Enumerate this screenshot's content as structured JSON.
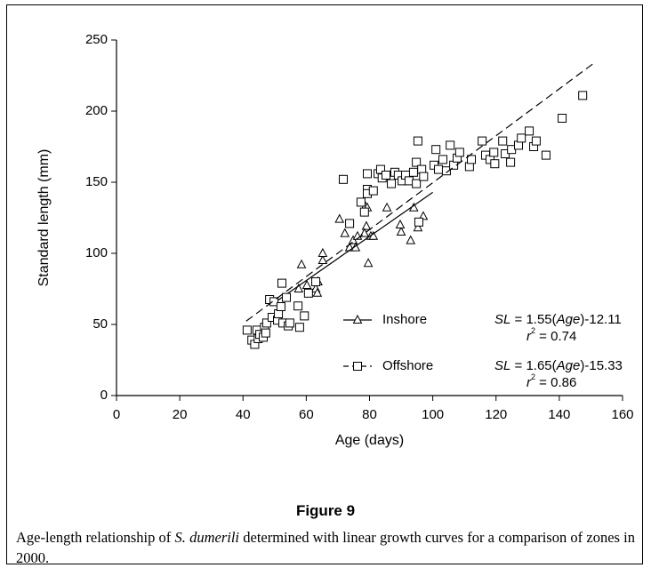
{
  "chart_data": {
    "type": "scatter",
    "xlabel": "Age (days)",
    "ylabel": "Standard length (mm)",
    "xlim": [
      0,
      160
    ],
    "ylim": [
      0,
      250
    ],
    "xticks": [
      0,
      20,
      40,
      60,
      80,
      100,
      120,
      140,
      160
    ],
    "yticks": [
      0,
      50,
      100,
      150,
      200,
      250
    ],
    "series": [
      {
        "name": "Inshore",
        "marker": "triangle",
        "line_style": "solid",
        "color": "#000000",
        "x": [
          58.5,
          60.2,
          57.6,
          63.7,
          65.2,
          65.2,
          63,
          63.5,
          70.5,
          72.2,
          73.7,
          74.8,
          76.2,
          75.6,
          79,
          78.4,
          79.6,
          80.4,
          81.2,
          85.5,
          90,
          89.7,
          93,
          94,
          95.3,
          97,
          78.7,
          79.3
        ],
        "values": [
          92,
          77.5,
          75,
          80,
          95,
          100,
          75,
          72,
          124,
          114,
          104,
          109,
          112,
          104,
          119,
          114,
          93,
          112,
          112,
          132,
          115,
          120,
          109,
          132,
          118,
          126,
          133,
          132
        ],
        "fit_x": [
          50,
          100
        ],
        "fit_values": [
          65.39,
          142.89
        ],
        "equation": [
          "SL",
          " = 1.55(",
          "Age",
          ")-12.11"
        ],
        "r2": [
          "r",
          "2",
          " = 0.74"
        ]
      },
      {
        "name": "Offshore",
        "marker": "square",
        "line_style": "dashed",
        "color": "#000000",
        "x": [
          41.3,
          42.8,
          43.7,
          44.8,
          44.4,
          45.3,
          46.4,
          46.8,
          47.2,
          47.5,
          48.4,
          49.2,
          49.8,
          50.9,
          51.2,
          52,
          52.3,
          52.6,
          53.7,
          54.3,
          54.8,
          57.4,
          57.9,
          59.4,
          60.7,
          63,
          71.7,
          73.7,
          77.3,
          78.4,
          79.3,
          79.3,
          79.3,
          81.2,
          82.7,
          83.5,
          84,
          85.2,
          86.9,
          88,
          89.1,
          90.3,
          91.4,
          92.5,
          93.9,
          94.8,
          94.8,
          95.3,
          95.6,
          96.5,
          97.1,
          100.4,
          101,
          101.8,
          103.2,
          104.3,
          105.5,
          106.6,
          107.7,
          108.5,
          111.6,
          112.2,
          115.6,
          116.7,
          118.1,
          119.3,
          119.6,
          122.1,
          122.9,
          124.6,
          124.9,
          127.1,
          128,
          130.5,
          131.9,
          132.7,
          135.8,
          140.9,
          147.4
        ],
        "values": [
          46,
          39,
          36,
          40,
          46,
          43,
          41,
          48,
          44,
          51,
          67.5,
          55,
          66,
          53,
          57.5,
          62.5,
          79,
          51,
          69,
          49,
          51,
          63,
          48,
          56,
          72,
          80,
          152,
          121,
          136,
          129,
          145,
          142,
          156,
          144,
          156,
          159,
          153,
          155,
          149,
          157,
          155,
          151,
          155,
          151,
          157,
          164,
          149,
          179,
          122,
          159,
          154,
          162,
          173,
          159,
          166,
          158,
          176,
          162,
          167,
          171,
          161,
          166,
          179,
          169,
          166,
          171,
          163,
          179,
          170,
          164,
          173,
          176,
          181,
          186,
          175,
          179,
          169,
          195,
          211
        ],
        "fit_x": [
          41,
          151
        ],
        "fit_values": [
          52.32,
          233.82
        ],
        "equation": [
          "SL",
          " = 1.65(",
          "Age",
          ")-15.33"
        ],
        "r2": [
          "r",
          "2",
          " = 0.86"
        ]
      }
    ]
  },
  "figure_label": "Figure 9",
  "caption": [
    "Age-length relationship of ",
    "S. dumerili",
    " determined with linear growth curves for a comparison of zones in 2000."
  ]
}
